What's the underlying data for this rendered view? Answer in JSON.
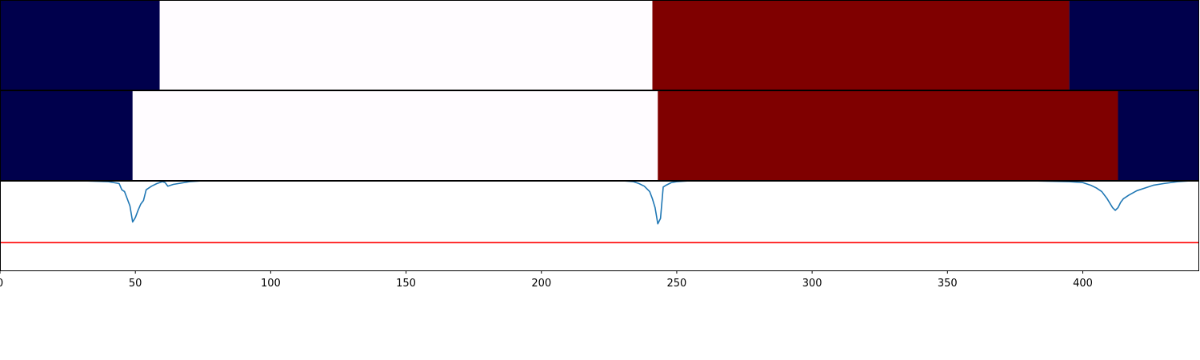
{
  "chart_data": [
    {
      "type": "heatmap",
      "panel": "top",
      "xlim": [
        0,
        443
      ],
      "segments": [
        {
          "start": 0,
          "end": 59,
          "color": "#00004c"
        },
        {
          "start": 59,
          "end": 241,
          "color": "#fffcff"
        },
        {
          "start": 241,
          "end": 395,
          "color": "#7f0000"
        },
        {
          "start": 395,
          "end": 443,
          "color": "#00004c"
        }
      ]
    },
    {
      "type": "heatmap",
      "panel": "middle",
      "xlim": [
        0,
        443
      ],
      "segments": [
        {
          "start": 0,
          "end": 49,
          "color": "#00004c"
        },
        {
          "start": 49,
          "end": 243,
          "color": "#fffcff"
        },
        {
          "start": 243,
          "end": 413,
          "color": "#7f0000"
        },
        {
          "start": 413,
          "end": 443,
          "color": "#00004c"
        }
      ]
    },
    {
      "type": "line",
      "panel": "bottom",
      "xlim": [
        0,
        443
      ],
      "ylim": [
        -1.0,
        0.0
      ],
      "grid": false,
      "series": [
        {
          "color": "#1f77b4",
          "x": [
            0,
            30,
            40,
            44,
            45,
            46,
            47,
            48,
            49,
            50,
            51,
            52,
            53,
            54,
            56,
            58,
            60,
            61,
            62,
            64,
            66,
            70,
            75,
            100,
            150,
            200,
            230,
            234,
            236,
            238,
            240,
            241,
            242,
            243,
            244,
            245,
            246,
            248,
            250,
            255,
            260,
            300,
            350,
            380,
            395,
            400,
            403,
            405,
            407,
            409,
            411,
            412,
            413,
            414,
            415,
            417,
            420,
            423,
            426,
            430,
            435,
            440
          ],
          "y": [
            0,
            0,
            -0.01,
            -0.03,
            -0.1,
            -0.12,
            -0.2,
            -0.28,
            -0.46,
            -0.41,
            -0.33,
            -0.26,
            -0.22,
            -0.1,
            -0.06,
            -0.03,
            -0.01,
            -0.02,
            -0.06,
            -0.04,
            -0.03,
            -0.01,
            0,
            0,
            0,
            0,
            0,
            -0.01,
            -0.03,
            -0.06,
            -0.12,
            -0.2,
            -0.3,
            -0.48,
            -0.42,
            -0.07,
            -0.05,
            -0.02,
            -0.01,
            0,
            0,
            0,
            0,
            0,
            -0.01,
            -0.02,
            -0.05,
            -0.08,
            -0.12,
            -0.2,
            -0.3,
            -0.33,
            -0.3,
            -0.24,
            -0.2,
            -0.16,
            -0.11,
            -0.08,
            -0.05,
            -0.03,
            -0.01,
            0
          ]
        },
        {
          "color": "#ff0000",
          "x": [
            0,
            443
          ],
          "y": [
            -0.69,
            -0.69
          ]
        }
      ],
      "xticks": [
        "0",
        "50",
        "100",
        "150",
        "200",
        "250",
        "300",
        "350",
        "400"
      ]
    }
  ]
}
